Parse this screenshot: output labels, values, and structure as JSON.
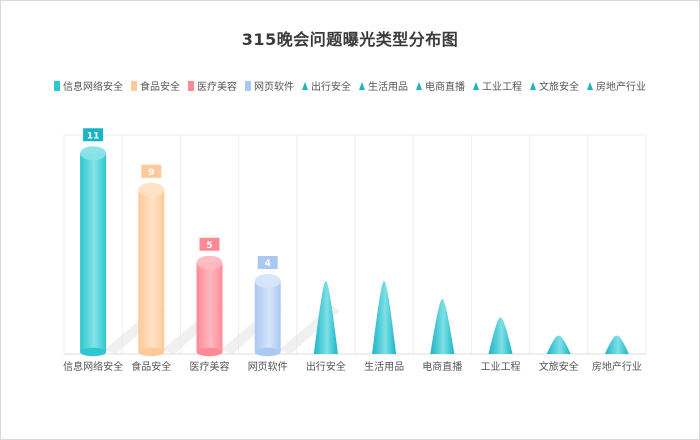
{
  "chart_data": {
    "type": "bar",
    "title": "315晚会问题曝光类型分布图",
    "xlabel": "",
    "ylabel": "",
    "ylim": [
      0,
      12
    ],
    "grid": true,
    "legend_position": "top",
    "categories": [
      "信息网络安全",
      "食品安全",
      "医疗美容",
      "网页软件",
      "出行安全",
      "生活用品",
      "电商直播",
      "工业工程",
      "文旅安全",
      "房地产行业"
    ],
    "values": [
      11,
      9,
      5,
      4,
      4,
      4,
      3,
      2,
      1,
      1
    ],
    "series_styles": [
      {
        "shape": "cylinder",
        "colors": [
          "#2ec6cf",
          "#86e3e8"
        ],
        "label_bg": "#1ab4c6"
      },
      {
        "shape": "cylinder",
        "colors": [
          "#ffc99a",
          "#ffe2c4"
        ],
        "label_bg": "#ffc99a"
      },
      {
        "shape": "cylinder",
        "colors": [
          "#ff8a96",
          "#ffb8c0"
        ],
        "label_bg": "#ff8a96"
      },
      {
        "shape": "cylinder",
        "colors": [
          "#a9c8f2",
          "#d6e5fa"
        ],
        "label_bg": "#a9c8f2"
      },
      {
        "shape": "cone",
        "colors": [
          "#1ab4c6",
          "#7ee0e6"
        ]
      },
      {
        "shape": "cone",
        "colors": [
          "#1ab4c6",
          "#7ee0e6"
        ]
      },
      {
        "shape": "cone",
        "colors": [
          "#1ab4c6",
          "#7ee0e6"
        ]
      },
      {
        "shape": "cone",
        "colors": [
          "#1ab4c6",
          "#7ee0e6"
        ]
      },
      {
        "shape": "cone",
        "colors": [
          "#1ab4c6",
          "#7ee0e6"
        ]
      },
      {
        "shape": "cone",
        "colors": [
          "#1ab4c6",
          "#7ee0e6"
        ]
      }
    ],
    "show_value_labels": [
      true,
      true,
      true,
      true,
      false,
      false,
      false,
      false,
      false,
      false
    ]
  }
}
